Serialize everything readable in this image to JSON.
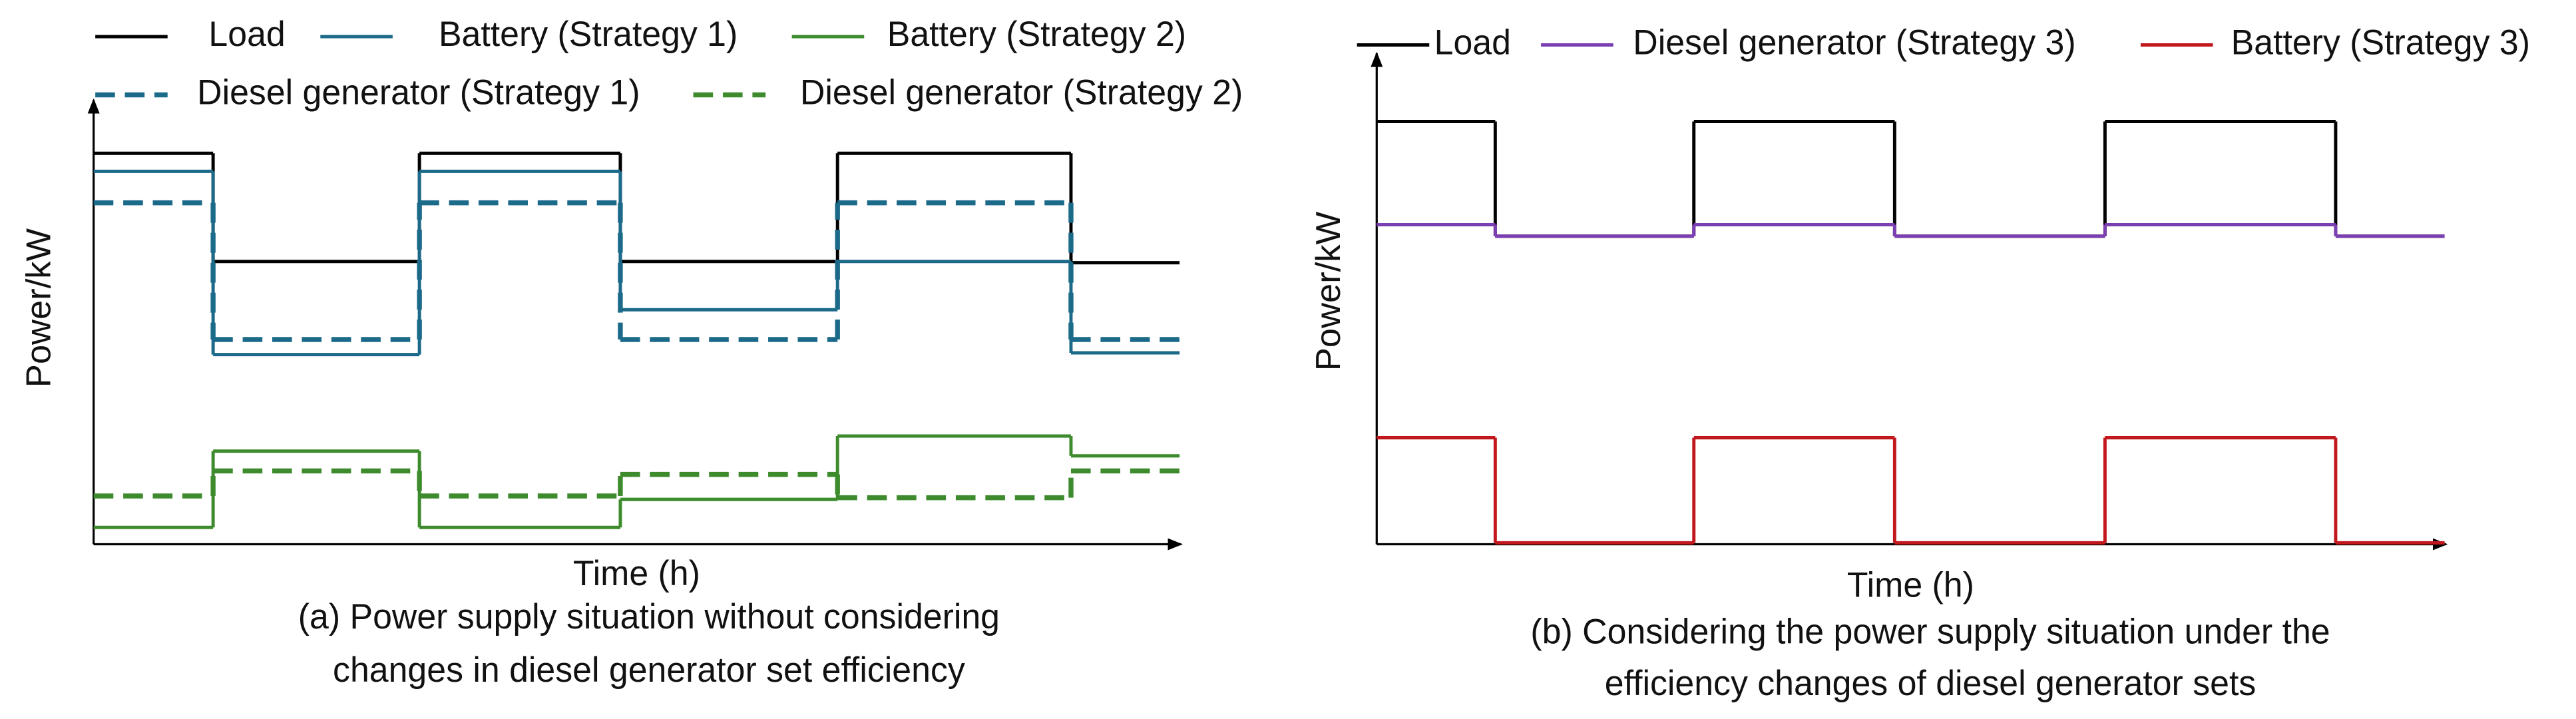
{
  "chart_data": [
    {
      "type": "step",
      "title": [
        "(a) Power supply situation without considering",
        "changes in diesel generator set efficiency"
      ],
      "x_label": "Time (h)",
      "y_label": "Power/kW",
      "x": [
        0,
        11,
        30,
        48.5,
        68.5,
        90
      ],
      "xlim": [
        0,
        100
      ],
      "ylim": [
        0,
        100
      ],
      "series": [
        {
          "name": "Load",
          "color": "#000000",
          "dash": "solid",
          "values": [
            90.7,
            65.6,
            90.7,
            65.6,
            90.7,
            65.3
          ]
        },
        {
          "name": "Battery (Strategy 1)",
          "color": "#1c6a8a",
          "dash": "solid",
          "values": [
            86.5,
            44.0,
            86.5,
            54.4,
            65.6,
            44.4
          ]
        },
        {
          "name": "Battery (Strategy 2)",
          "color": "#3d8b2c",
          "dash": "solid",
          "values": [
            3.9,
            21.6,
            3.9,
            10.4,
            25.1,
            20.5
          ]
        },
        {
          "name": "Diesel generator (Strategy 1)",
          "color": "#1c6a8a",
          "dash": "dashed",
          "values": [
            79.2,
            47.5,
            79.2,
            47.5,
            79.2,
            47.5
          ]
        },
        {
          "name": "Diesel generator (Strategy 2)",
          "color": "#3d8b2c",
          "dash": "dashed",
          "values": [
            11.2,
            17.0,
            11.2,
            16.2,
            10.8,
            17.0
          ]
        }
      ]
    },
    {
      "type": "step",
      "title": [
        "(b) Considering the power supply situation under the",
        "efficiency changes of diesel generator sets"
      ],
      "x_label": "Time (h)",
      "y_label": "Power/kW",
      "x": [
        0,
        11.1,
        29.7,
        48.5,
        68.2,
        89.8
      ],
      "xlim": [
        0,
        100
      ],
      "ylim": [
        0,
        100
      ],
      "series": [
        {
          "name": "Load",
          "color": "#000000",
          "dash": "solid",
          "values": [
            88.5,
            64.5,
            88.5,
            64.5,
            88.5,
            64.5
          ]
        },
        {
          "name": "Diesel generator (Strategy 3)",
          "color": "#7b3fb3",
          "dash": "solid",
          "values": [
            66.9,
            64.5,
            66.9,
            64.5,
            66.9,
            64.5
          ]
        },
        {
          "name": "Battery (Strategy 3)",
          "color": "#c2181d",
          "dash": "solid",
          "values": [
            22.3,
            0.3,
            22.3,
            0.3,
            22.3,
            0.3
          ]
        }
      ]
    }
  ]
}
